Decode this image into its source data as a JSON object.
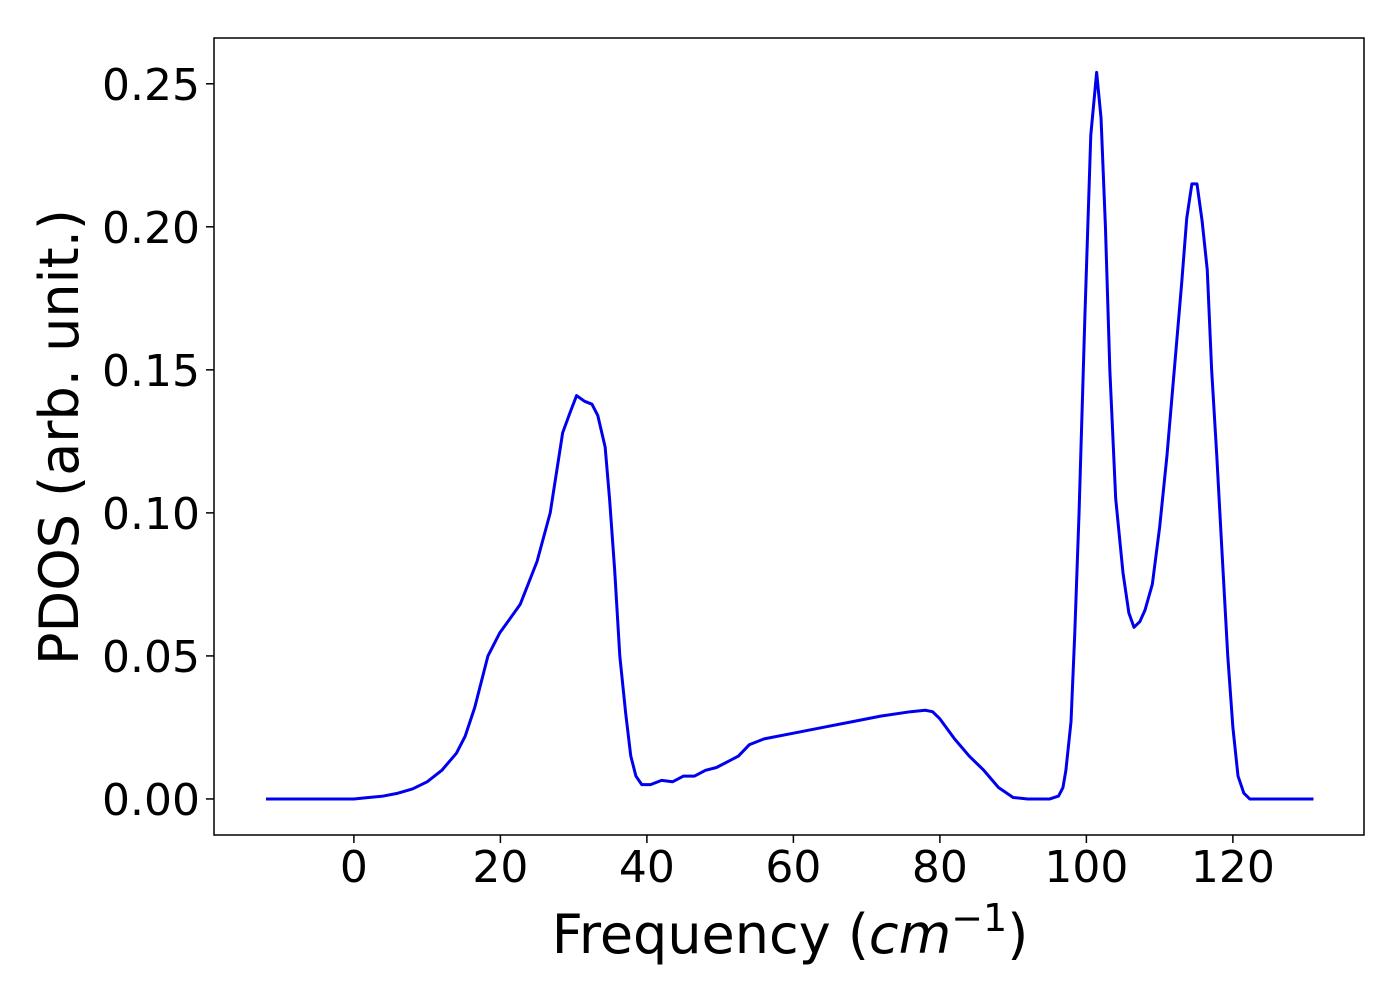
{
  "chart_data": {
    "type": "line",
    "xlabel": [
      "Frequency (",
      "cm",
      "−1",
      ")"
    ],
    "ylabel": "PDOS (arb. unit.)",
    "xlim": [
      -19.1,
      137.9
    ],
    "ylim": [
      -0.0126,
      0.266
    ],
    "xticks": [
      0,
      20,
      40,
      60,
      80,
      100,
      120
    ],
    "yticks": [
      {
        "value": 0,
        "label": "0.00"
      },
      {
        "value": 0.05,
        "label": "0.05"
      },
      {
        "value": 0.1,
        "label": "0.10"
      },
      {
        "value": 0.15,
        "label": "0.15"
      },
      {
        "value": 0.2,
        "label": "0.20"
      },
      {
        "value": 0.25,
        "label": "0.25"
      }
    ],
    "grid": false,
    "x": [
      -12,
      -6,
      0,
      2,
      4,
      6,
      8,
      10,
      12,
      14,
      15.2,
      16.5,
      18.3,
      19.9,
      22.7,
      25,
      26.8,
      28.5,
      29.5,
      30.4,
      31.5,
      32.5,
      33.3,
      34.3,
      34.9,
      35.6,
      36.3,
      37.1,
      37.8,
      38.5,
      39.3,
      40.5,
      42,
      43.5,
      45,
      46.5,
      48,
      49.5,
      51,
      52.5,
      54,
      56,
      60,
      64,
      68,
      72,
      76,
      78,
      79,
      80,
      82,
      84,
      86,
      88,
      90,
      92,
      95,
      96.2,
      96.8,
      97.2,
      97.9,
      98.4,
      99,
      99.8,
      100.6,
      101.4,
      102,
      102.6,
      103.2,
      104,
      105,
      105.8,
      106.5,
      107.3,
      108,
      109,
      110,
      111,
      112,
      113,
      113.7,
      114.4,
      115.1,
      115.8,
      116.5,
      117.1,
      117.8,
      118.5,
      119.3,
      120,
      120.7,
      121.5,
      122.3,
      124,
      131
    ],
    "series": [
      {
        "color": "#0000ee",
        "values": [
          0,
          0,
          0,
          0.0005,
          0.001,
          0.002,
          0.0035,
          0.006,
          0.01,
          0.016,
          0.022,
          0.032,
          0.05,
          0.058,
          0.068,
          0.083,
          0.1,
          0.128,
          0.135,
          0.141,
          0.139,
          0.138,
          0.134,
          0.123,
          0.105,
          0.08,
          0.05,
          0.03,
          0.015,
          0.008,
          0.005,
          0.005,
          0.0065,
          0.006,
          0.008,
          0.008,
          0.01,
          0.011,
          0.013,
          0.015,
          0.019,
          0.021,
          0.023,
          0.025,
          0.027,
          0.029,
          0.0305,
          0.031,
          0.0305,
          0.028,
          0.021,
          0.015,
          0.01,
          0.004,
          0.0005,
          0,
          0,
          0.001,
          0.004,
          0.01,
          0.027,
          0.057,
          0.1,
          0.169,
          0.232,
          0.254,
          0.238,
          0.2,
          0.15,
          0.105,
          0.079,
          0.065,
          0.06,
          0.062,
          0.066,
          0.075,
          0.095,
          0.12,
          0.15,
          0.18,
          0.203,
          0.215,
          0.215,
          0.202,
          0.185,
          0.15,
          0.12,
          0.087,
          0.05,
          0.025,
          0.008,
          0.002,
          0,
          0,
          0
        ]
      }
    ]
  }
}
